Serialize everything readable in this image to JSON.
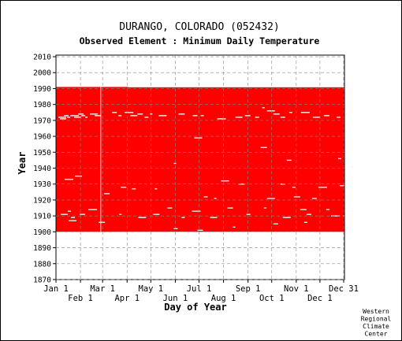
{
  "chart_data": {
    "type": "heatmap",
    "title": "DURANGO, COLORADO   (052432)",
    "subtitle": "Observed Element : Minimum Daily Temperature",
    "xlabel": "Day of Year",
    "ylabel": "Year",
    "x_ticks_top": [
      "Jan 1",
      "Mar 1",
      "May 1",
      "Jul 1",
      "Sep 1",
      "Nov 1",
      "Dec 31"
    ],
    "x_ticks_bottom": [
      "Feb 1",
      "Apr 1",
      "Jun 1",
      "Aug 1",
      "Oct 1",
      "Dec 1"
    ],
    "x_tick_days_top": [
      1,
      60,
      121,
      182,
      244,
      305,
      365
    ],
    "x_tick_days_bottom": [
      32,
      91,
      152,
      213,
      274,
      335
    ],
    "y_ticks": [
      2010,
      2000,
      1990,
      1980,
      1970,
      1960,
      1950,
      1940,
      1930,
      1920,
      1910,
      1900,
      1890,
      1880,
      1870
    ],
    "xlim": [
      1,
      366
    ],
    "ylim": [
      1870,
      2011
    ],
    "grid": true,
    "data_color": "#ff0000",
    "period_of_record": [
      {
        "start_year": 1900,
        "end_day": 365,
        "end_year": 1990.8
      },
      {
        "start_year": 1900,
        "end_day": 91,
        "end_year": 1991.0
      }
    ],
    "missing_segments": [
      {
        "day": 57,
        "year_from": 1900,
        "year_to": 1991,
        "note": "leap-day column"
      },
      {
        "day": 4,
        "year": 1972
      },
      {
        "day": 6,
        "year": 1971
      },
      {
        "day": 11,
        "year": 1973
      },
      {
        "day": 15,
        "year": 1972
      },
      {
        "day": 19,
        "year": 1973
      },
      {
        "day": 24,
        "year": 1972
      },
      {
        "day": 29,
        "year": 1974
      },
      {
        "day": 33,
        "year": 1973
      },
      {
        "day": 38,
        "year": 1972
      },
      {
        "day": 44,
        "year": 1974
      },
      {
        "day": 50,
        "year": 1973
      },
      {
        "day": 72,
        "year": 1975
      },
      {
        "day": 80,
        "year": 1973
      },
      {
        "day": 88,
        "year": 1975
      },
      {
        "day": 95,
        "year": 1973
      },
      {
        "day": 104,
        "year": 1974
      },
      {
        "day": 113,
        "year": 1972
      },
      {
        "day": 120,
        "year": 1974
      },
      {
        "day": 131,
        "year": 1973
      },
      {
        "day": 156,
        "year": 1974
      },
      {
        "day": 174,
        "year": 1973
      },
      {
        "day": 184,
        "year": 1973
      },
      {
        "day": 205,
        "year": 1971
      },
      {
        "day": 228,
        "year": 1972
      },
      {
        "day": 240,
        "year": 1973
      },
      {
        "day": 253,
        "year": 1972
      },
      {
        "day": 262,
        "year": 1978
      },
      {
        "day": 268,
        "year": 1976
      },
      {
        "day": 276,
        "year": 1974
      },
      {
        "day": 285,
        "year": 1972
      },
      {
        "day": 296,
        "year": 1975
      },
      {
        "day": 311,
        "year": 1975
      },
      {
        "day": 326,
        "year": 1972
      },
      {
        "day": 340,
        "year": 1973
      },
      {
        "day": 356,
        "year": 1972
      },
      {
        "day": 150,
        "year": 1943
      },
      {
        "day": 176,
        "year": 1959
      },
      {
        "day": 260,
        "year": 1953
      },
      {
        "day": 293,
        "year": 1945
      },
      {
        "day": 358,
        "year": 1946
      },
      {
        "day": 12,
        "year": 1933
      },
      {
        "day": 25,
        "year": 1935
      },
      {
        "day": 83,
        "year": 1928
      },
      {
        "day": 97,
        "year": 1927
      },
      {
        "day": 126,
        "year": 1927
      },
      {
        "day": 210,
        "year": 1932
      },
      {
        "day": 232,
        "year": 1930
      },
      {
        "day": 285,
        "year": 1930
      },
      {
        "day": 300,
        "year": 1928
      },
      {
        "day": 333,
        "year": 1928
      },
      {
        "day": 360,
        "year": 1929
      },
      {
        "day": 62,
        "year": 1924
      },
      {
        "day": 188,
        "year": 1922
      },
      {
        "day": 201,
        "year": 1921
      },
      {
        "day": 268,
        "year": 1921
      },
      {
        "day": 302,
        "year": 1922
      },
      {
        "day": 325,
        "year": 1921
      },
      {
        "day": 16,
        "year": 1913
      },
      {
        "day": 42,
        "year": 1914
      },
      {
        "day": 7,
        "year": 1911
      },
      {
        "day": 31,
        "year": 1911
      },
      {
        "day": 20,
        "year": 1909
      },
      {
        "day": 81,
        "year": 1911
      },
      {
        "day": 105,
        "year": 1909
      },
      {
        "day": 124,
        "year": 1911
      },
      {
        "day": 142,
        "year": 1915
      },
      {
        "day": 160,
        "year": 1909
      },
      {
        "day": 173,
        "year": 1913
      },
      {
        "day": 196,
        "year": 1909
      },
      {
        "day": 218,
        "year": 1915
      },
      {
        "day": 242,
        "year": 1911
      },
      {
        "day": 264,
        "year": 1915
      },
      {
        "day": 288,
        "year": 1909
      },
      {
        "day": 310,
        "year": 1914
      },
      {
        "day": 318,
        "year": 1911
      },
      {
        "day": 343,
        "year": 1914
      },
      {
        "day": 349,
        "year": 1910
      },
      {
        "day": 364,
        "year": 1910
      },
      {
        "day": 180,
        "year": 1901
      },
      {
        "day": 150,
        "year": 1902
      },
      {
        "day": 225,
        "year": 1903
      },
      {
        "day": 17,
        "year": 1907
      },
      {
        "day": 55,
        "year": 1906
      },
      {
        "day": 276,
        "year": 1905
      },
      {
        "day": 315,
        "year": 1906
      }
    ]
  },
  "credit": [
    "Western",
    "Regional",
    "Climate",
    "Center"
  ]
}
